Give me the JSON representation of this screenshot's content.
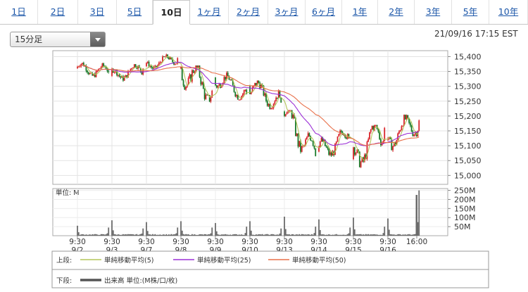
{
  "tabs": [
    "1日",
    "2日",
    "3日",
    "5日",
    "10日",
    "1ヶ月",
    "2ヶ月",
    "3ヶ月",
    "6ヶ月",
    "1年",
    "2年",
    "3年",
    "5年",
    "10年"
  ],
  "active_tab": "10日",
  "interval_select": {
    "value": "15分足"
  },
  "datetime": "21/09/16 17:15 EST",
  "legend": {
    "upper_label": "上段:",
    "lower_label": "下段:",
    "items": [
      {
        "label": "単純移動平均(5)",
        "color": "#b3c55a"
      },
      {
        "label": "単純移動平均(25)",
        "color": "#9b30d6"
      },
      {
        "label": "単純移動平均(50)",
        "color": "#e8704a"
      }
    ],
    "volume_label": "出来高 単位:(M株/口/枚)",
    "volume_color": "#555555"
  },
  "chart_data": [
    {
      "type": "candlestick",
      "up_color": "#d8242a",
      "down_color": "#1a7a2a",
      "y_ticks": [
        "15,400",
        "15,350",
        "15,300",
        "15,250",
        "15,200",
        "15,150",
        "15,100",
        "15,050",
        "15,000"
      ],
      "ylim": [
        14970,
        15420
      ],
      "sessions": [
        {
          "date_label": "9/2",
          "time_label": "9:30",
          "open": 15360,
          "close": 15348,
          "low": 15310,
          "high": 15385
        },
        {
          "date_label": "9/3",
          "time_label": "9:30",
          "open": 15335,
          "close": 15360,
          "low": 15300,
          "high": 15375
        },
        {
          "date_label": "9/7",
          "time_label": "9:30",
          "open": 15368,
          "close": 15395,
          "low": 15350,
          "high": 15410
        },
        {
          "date_label": "9/8",
          "time_label": "9:30",
          "open": 15360,
          "close": 15285,
          "low": 15205,
          "high": 15370
        },
        {
          "date_label": "9/9",
          "time_label": "9:30",
          "open": 15330,
          "close": 15275,
          "low": 15255,
          "high": 15355
        },
        {
          "date_label": "9/10",
          "time_label": "9:30",
          "open": 15300,
          "close": 15245,
          "low": 15205,
          "high": 15320
        },
        {
          "date_label": "9/13",
          "time_label": "9:30",
          "open": 15215,
          "close": 15065,
          "low": 15035,
          "high": 15220
        },
        {
          "date_label": "9/14",
          "time_label": "9:30",
          "open": 15080,
          "close": 15130,
          "low": 15040,
          "high": 15165
        },
        {
          "date_label": "9/15",
          "time_label": "9:30",
          "open": 15055,
          "close": 15160,
          "low": 14985,
          "high": 15170
        },
        {
          "date_label": "9/16",
          "time_label": "9:30",
          "open": 15120,
          "close": 15185,
          "low": 15070,
          "high": 15205
        }
      ],
      "end_time_label": "16:00"
    },
    {
      "type": "bar",
      "title": "単位: M",
      "y_ticks": [
        "250M",
        "200M",
        "150M",
        "100M",
        "50M"
      ],
      "ylim": [
        0,
        260
      ],
      "session_open_spikes": [
        55,
        85,
        75,
        80,
        70,
        80,
        105,
        90,
        100,
        95
      ],
      "session_close_spikes": [
        45,
        40,
        45,
        45,
        50,
        40,
        50,
        45,
        50,
        250
      ],
      "end_spike": 225
    }
  ]
}
